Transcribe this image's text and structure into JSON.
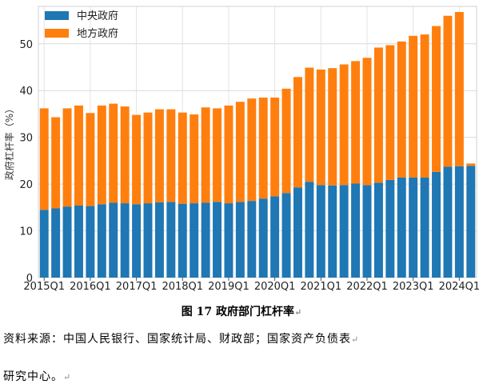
{
  "chart_data": {
    "type": "bar",
    "stacked": true,
    "ylabel": "政府杠杆率（%）",
    "ylim": [
      0,
      58
    ],
    "yticks": [
      0,
      10,
      20,
      30,
      40,
      50
    ],
    "xtick_labels": [
      "2015Q1",
      "2016Q1",
      "2017Q1",
      "2018Q1",
      "2019Q1",
      "2020Q1",
      "2021Q1",
      "2022Q1",
      "2023Q1",
      "2024Q1"
    ],
    "grid": true,
    "legend_position": "top-left",
    "categories": [
      "2015Q1",
      "2015Q2",
      "2015Q3",
      "2015Q4",
      "2016Q1",
      "2016Q2",
      "2016Q3",
      "2016Q4",
      "2017Q1",
      "2017Q2",
      "2017Q3",
      "2017Q4",
      "2018Q1",
      "2018Q2",
      "2018Q3",
      "2018Q4",
      "2019Q1",
      "2019Q2",
      "2019Q3",
      "2019Q4",
      "2020Q1",
      "2020Q2",
      "2020Q3",
      "2020Q4",
      "2021Q1",
      "2021Q2",
      "2021Q3",
      "2021Q4",
      "2022Q1",
      "2022Q2",
      "2022Q3",
      "2022Q4",
      "2023Q1",
      "2023Q2",
      "2023Q3",
      "2023Q4",
      "2024Q1",
      "2024Q2"
    ],
    "series": [
      {
        "name": "中央政府",
        "color": "#1f77b4",
        "values": [
          14.5,
          14.8,
          15.2,
          15.4,
          15.3,
          15.7,
          16.0,
          15.9,
          15.7,
          15.9,
          16.1,
          16.2,
          15.8,
          15.9,
          16.0,
          16.2,
          15.9,
          16.2,
          16.4,
          16.9,
          17.4,
          18.1,
          19.3,
          20.5,
          19.8,
          19.7,
          19.8,
          20.1,
          19.8,
          20.3,
          20.9,
          21.4,
          21.4,
          21.4,
          22.6,
          23.7,
          23.8,
          23.9
        ]
      },
      {
        "name": "地方政府",
        "color": "#ff7f0e",
        "values": [
          21.7,
          19.5,
          21.0,
          21.4,
          19.9,
          21.1,
          21.2,
          20.7,
          19.1,
          19.4,
          19.9,
          19.8,
          19.5,
          19.0,
          20.4,
          20.0,
          20.9,
          21.4,
          21.9,
          21.6,
          21.1,
          22.3,
          23.6,
          24.4,
          24.7,
          25.1,
          25.8,
          26.2,
          27.2,
          28.9,
          28.8,
          29.1,
          30.3,
          30.6,
          31.2,
          32.3,
          33.0,
          0.5
        ]
      }
    ]
  },
  "figure": {
    "caption": "图 17 政府部门杠杆率",
    "source_line1": "资料来源：中国人民银行、国家统计局、财政部；国家资产负债表",
    "source_line2": "研究中心。"
  }
}
